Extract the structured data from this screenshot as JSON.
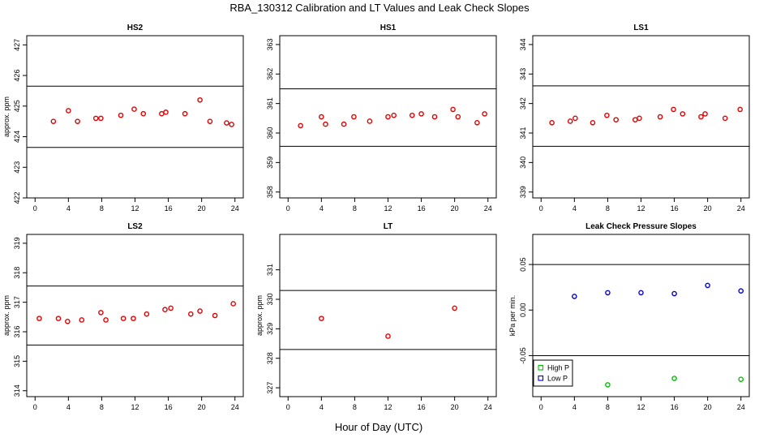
{
  "figure": {
    "title": "RBA_130312  Calibration and LT Values and Leak Check Slopes",
    "xlabel": "Hour of Day (UTC)"
  },
  "chart_data": [
    {
      "id": "hs2",
      "type": "scatter",
      "title": "HS2",
      "ylabel": "approx. ppm",
      "xlim": [
        -1,
        25
      ],
      "xticks": [
        0,
        4,
        8,
        12,
        16,
        20,
        24
      ],
      "ylim": [
        422,
        427.3
      ],
      "yticks": [
        422,
        423,
        424,
        425,
        426,
        427
      ],
      "hlines": [
        425.65,
        423.65
      ],
      "point_color": "#e00000",
      "series": [
        {
          "x": [
            2.2,
            4.0,
            5.1,
            7.3,
            7.9,
            10.3,
            11.9,
            13.0,
            15.2,
            15.7,
            18.0,
            19.8,
            21.0,
            23.0,
            23.6
          ],
          "y": [
            424.5,
            424.85,
            424.5,
            424.6,
            424.6,
            424.7,
            424.9,
            424.75,
            424.75,
            424.8,
            424.75,
            425.2,
            424.5,
            424.45,
            424.4
          ]
        }
      ]
    },
    {
      "id": "hs1",
      "type": "scatter",
      "title": "HS1",
      "ylabel": "",
      "xlim": [
        -1,
        25
      ],
      "xticks": [
        0,
        4,
        8,
        12,
        16,
        20,
        24
      ],
      "ylim": [
        357.8,
        363.3
      ],
      "yticks": [
        358,
        359,
        360,
        361,
        362,
        363
      ],
      "hlines": [
        361.5,
        359.55
      ],
      "point_color": "#e00000",
      "series": [
        {
          "x": [
            1.5,
            4.0,
            4.5,
            6.7,
            7.9,
            9.8,
            12.0,
            12.7,
            14.9,
            16.0,
            17.6,
            19.8,
            20.4,
            22.7,
            23.6
          ],
          "y": [
            360.25,
            360.55,
            360.3,
            360.3,
            360.55,
            360.4,
            360.55,
            360.6,
            360.6,
            360.65,
            360.55,
            360.8,
            360.55,
            360.35,
            360.65
          ]
        }
      ]
    },
    {
      "id": "ls1",
      "type": "scatter",
      "title": "LS1",
      "ylabel": "",
      "xlim": [
        -1,
        25
      ],
      "xticks": [
        0,
        4,
        8,
        12,
        16,
        20,
        24
      ],
      "ylim": [
        338.8,
        344.3
      ],
      "yticks": [
        339,
        340,
        341,
        342,
        343,
        344
      ],
      "hlines": [
        342.6,
        340.55
      ],
      "point_color": "#e00000",
      "series": [
        {
          "x": [
            1.3,
            3.5,
            4.1,
            6.2,
            7.9,
            9.0,
            11.3,
            11.8,
            14.3,
            15.9,
            17.0,
            19.2,
            19.7,
            22.1,
            23.9
          ],
          "y": [
            341.35,
            341.4,
            341.5,
            341.35,
            341.6,
            341.45,
            341.45,
            341.5,
            341.55,
            341.8,
            341.65,
            341.55,
            341.65,
            341.5,
            341.8
          ]
        }
      ]
    },
    {
      "id": "ls2",
      "type": "scatter",
      "title": "LS2",
      "ylabel": "approx. ppm",
      "xlim": [
        -1,
        25
      ],
      "xticks": [
        0,
        4,
        8,
        12,
        16,
        20,
        24
      ],
      "ylim": [
        313.8,
        319.3
      ],
      "yticks": [
        314,
        315,
        316,
        317,
        318,
        319
      ],
      "hlines": [
        317.55,
        315.55
      ],
      "point_color": "#e00000",
      "series": [
        {
          "x": [
            0.5,
            2.8,
            3.9,
            5.6,
            7.9,
            8.5,
            10.6,
            11.8,
            13.4,
            15.6,
            16.3,
            18.7,
            19.8,
            21.6,
            23.8
          ],
          "y": [
            316.45,
            316.45,
            316.35,
            316.4,
            316.65,
            316.4,
            316.45,
            316.45,
            316.6,
            316.75,
            316.8,
            316.6,
            316.7,
            316.55,
            316.95
          ]
        }
      ]
    },
    {
      "id": "lt",
      "type": "scatter",
      "title": "LT",
      "ylabel": "approx. ppm",
      "xlim": [
        -1,
        25
      ],
      "xticks": [
        0,
        4,
        8,
        12,
        16,
        20,
        24
      ],
      "ylim": [
        326.7,
        332.2
      ],
      "yticks": [
        327,
        328,
        329,
        330,
        331
      ],
      "hlines": [
        330.3,
        328.3
      ],
      "point_color": "#e00000",
      "series": [
        {
          "x": [
            4.0,
            12.0,
            20.0
          ],
          "y": [
            329.35,
            328.75,
            329.7
          ]
        }
      ]
    },
    {
      "id": "leak",
      "type": "scatter",
      "title": "Leak Check Pressure Slopes",
      "ylabel": "kPa per min.",
      "xlim": [
        -1,
        25
      ],
      "xticks": [
        0,
        4,
        8,
        12,
        16,
        20,
        24
      ],
      "ylim": [
        -0.095,
        0.083
      ],
      "yticks": [
        -0.05,
        0.0,
        0.05
      ],
      "ytick_labels": [
        "-0.05",
        "0.00",
        "0.05"
      ],
      "hlines": [
        0.05,
        -0.05
      ],
      "legend": {
        "position": "bottom-left"
      },
      "series": [
        {
          "name": "High P",
          "color": "#00c000",
          "x": [
            8.0,
            16.0,
            24.0
          ],
          "y": [
            -0.082,
            -0.075,
            -0.076
          ]
        },
        {
          "name": "Low P",
          "color": "#0000d0",
          "x": [
            4.0,
            8.0,
            12.0,
            16.0,
            20.0,
            24.0
          ],
          "y": [
            0.015,
            0.019,
            0.019,
            0.018,
            0.027,
            0.021
          ]
        }
      ]
    }
  ]
}
